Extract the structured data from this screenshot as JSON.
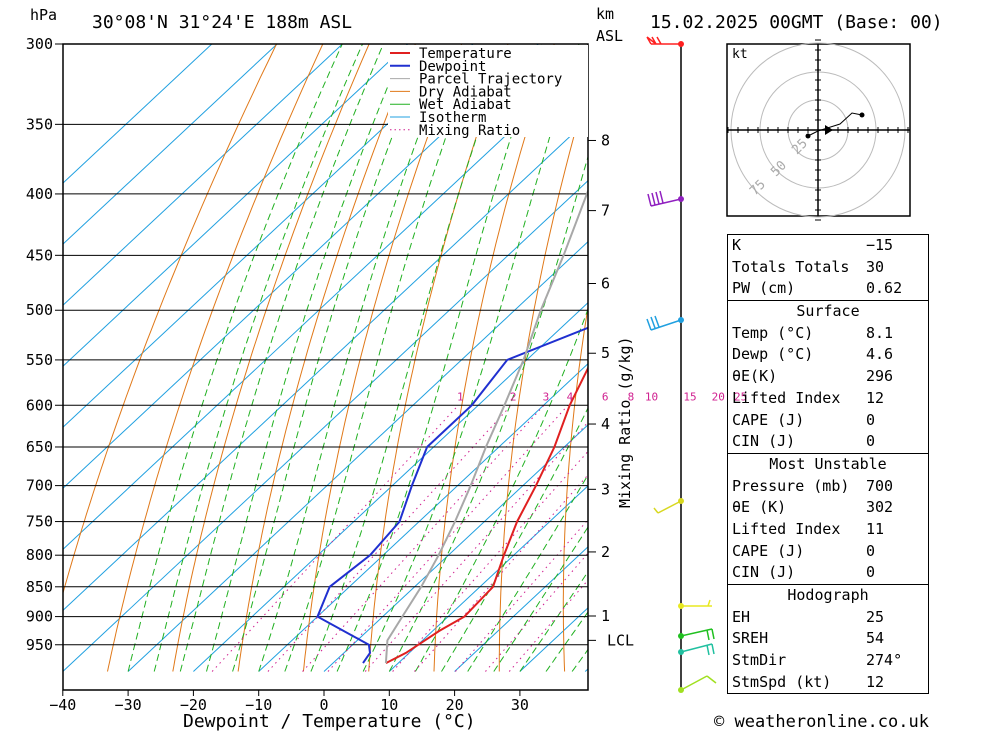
{
  "header": {
    "unit_left": "hPa",
    "location": "30°08'N 31°24'E 188m ASL",
    "unit_right_top": "km",
    "unit_right_bottom": "ASL",
    "datetime": "15.02.2025 00GMT (Base: 00)"
  },
  "footer": {
    "credit": "© weatheronline.co.uk"
  },
  "colors": {
    "temperature": "#e02020",
    "dewpoint": "#2030d0",
    "parcel": "#a8a8a8",
    "dry_adiabat": "#e07818",
    "wet_adiabat": "#20b020",
    "isotherm": "#20a0e0",
    "mixing_ratio": "#d02090"
  },
  "chart_data": {
    "type": "skew-t",
    "xlabel": "Dewpoint / Temperature (°C)",
    "ylabel_right": "Mixing Ratio (g/kg)",
    "x_ticks": [
      -40,
      -30,
      -20,
      -10,
      0,
      10,
      20,
      30
    ],
    "x_tick_labels": [
      "−40",
      "−30",
      "−20",
      "−10",
      "0",
      "10",
      "20",
      "30"
    ],
    "pressure_levels": [
      300,
      350,
      400,
      450,
      500,
      550,
      600,
      650,
      700,
      750,
      800,
      850,
      900,
      950
    ],
    "height_km": [
      {
        "label": "8",
        "p": 361
      },
      {
        "label": "7",
        "p": 413
      },
      {
        "label": "6",
        "p": 475
      },
      {
        "label": "5",
        "p": 543
      },
      {
        "label": "4",
        "p": 622
      },
      {
        "label": "3",
        "p": 705
      },
      {
        "label": "2",
        "p": 795
      },
      {
        "label": "1",
        "p": 899
      },
      {
        "label": "LCL",
        "p": 942
      }
    ],
    "mixing_ratio_labels": [
      "1",
      "2",
      "3",
      "4",
      "6",
      "8",
      "10",
      "15",
      "20",
      "25"
    ],
    "mixing_ratio_values": [
      1,
      2,
      3,
      4,
      6,
      8,
      10,
      15,
      20,
      25
    ],
    "legend": [
      "Temperature",
      "Dewpoint",
      "Parcel Trajectory",
      "Dry Adiabat",
      "Wet Adiabat",
      "Isotherm",
      "Mixing Ratio"
    ],
    "series": [
      {
        "name": "Temperature",
        "points": [
          [
            984,
            8.1
          ],
          [
            965,
            9.5
          ],
          [
            925,
            11
          ],
          [
            900,
            12.5
          ],
          [
            850,
            12
          ],
          [
            800,
            8.5
          ],
          [
            750,
            5
          ],
          [
            700,
            2
          ],
          [
            650,
            -1.5
          ],
          [
            600,
            -6
          ],
          [
            550,
            -10
          ],
          [
            500,
            -15
          ],
          [
            450,
            -21
          ],
          [
            425,
            -23
          ],
          [
            400,
            -27
          ],
          [
            350,
            -36
          ],
          [
            300,
            -45
          ]
        ]
      },
      {
        "name": "Dewpoint",
        "points": [
          [
            984,
            4.6
          ],
          [
            965,
            4
          ],
          [
            950,
            2.5
          ],
          [
            900,
            -10
          ],
          [
            850,
            -13
          ],
          [
            800,
            -12
          ],
          [
            750,
            -13
          ],
          [
            700,
            -17
          ],
          [
            650,
            -21
          ],
          [
            600,
            -21
          ],
          [
            550,
            -23
          ],
          [
            500,
            -12
          ],
          [
            450,
            -10
          ],
          [
            400,
            -36
          ],
          [
            350,
            -38
          ],
          [
            300,
            -38
          ]
        ]
      },
      {
        "name": "Parcel Trajectory",
        "points": [
          [
            984,
            8.1
          ],
          [
            942,
            4.6
          ],
          [
            900,
            3
          ],
          [
            850,
            1
          ],
          [
            800,
            -1.5
          ],
          [
            750,
            -4.5
          ],
          [
            700,
            -8
          ],
          [
            650,
            -12
          ],
          [
            600,
            -16
          ],
          [
            550,
            -20.5
          ],
          [
            500,
            -26
          ],
          [
            450,
            -31.5
          ],
          [
            400,
            -38
          ],
          [
            350,
            -45
          ],
          [
            300,
            -53
          ]
        ]
      }
    ],
    "hodograph": {
      "unit": "kt",
      "ring_labels": [
        "25",
        "50",
        "75"
      ]
    },
    "indices": [
      {
        "label": "K",
        "value": "−15"
      },
      {
        "label": "Totals Totals",
        "value": "30"
      },
      {
        "label": "PW (cm)",
        "value": "0.62"
      }
    ],
    "surface": {
      "title": "Surface",
      "rows": [
        {
          "label": "Temp (°C)",
          "value": "8.1"
        },
        {
          "label": "Dewp (°C)",
          "value": "4.6"
        },
        {
          "label": "θE(K)",
          "value": "296"
        },
        {
          "label": "Lifted Index",
          "value": "12"
        },
        {
          "label": "CAPE (J)",
          "value": "0"
        },
        {
          "label": "CIN (J)",
          "value": "0"
        }
      ]
    },
    "most_unstable": {
      "title": "Most Unstable",
      "rows": [
        {
          "label": "Pressure (mb)",
          "value": "700"
        },
        {
          "label": "θE (K)",
          "value": "302"
        },
        {
          "label": "Lifted Index",
          "value": "11"
        },
        {
          "label": "CAPE (J)",
          "value": "0"
        },
        {
          "label": "CIN (J)",
          "value": "0"
        }
      ]
    },
    "hodograph_stats": {
      "title": "Hodograph",
      "rows": [
        {
          "label": "EH",
          "value": "25"
        },
        {
          "label": "SREH",
          "value": "54"
        },
        {
          "label": "StmDir",
          "value": "274°"
        },
        {
          "label": "StmSpd (kt)",
          "value": "12"
        }
      ]
    }
  }
}
